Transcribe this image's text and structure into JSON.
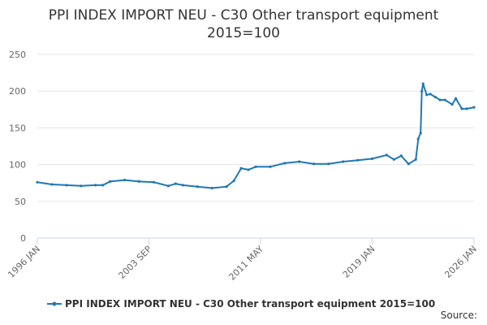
{
  "chart_data": {
    "type": "line",
    "title": "PPI INDEX IMPORT NEU - C30 Other transport equipment",
    "subtitle": "2015=100",
    "source": "Source:",
    "x": [
      "1996 JAN",
      "1997 JAN",
      "1998 JAN",
      "1999 JAN",
      "2000 JAN",
      "2000 JUL",
      "2001 JAN",
      "2002 JAN",
      "2003 JAN",
      "2004 JAN",
      "2005 JAN",
      "2005 JUL",
      "2006 JAN",
      "2007 JAN",
      "2008 JAN",
      "2009 JAN",
      "2009 JUL",
      "2010 JAN",
      "2010 JUL",
      "2011 JAN",
      "2012 JAN",
      "2013 JAN",
      "2014 JAN",
      "2015 JAN",
      "2016 JAN",
      "2017 JAN",
      "2018 JAN",
      "2019 JAN",
      "2020 JAN",
      "2020 JUL",
      "2021 JAN",
      "2021 JUL",
      "2022 JAN",
      "2022 MAR",
      "2022 MAY",
      "2022 JUN",
      "2022 JUL",
      "2022 OCT",
      "2023 JAN",
      "2023 MAY",
      "2023 SEP",
      "2024 JAN",
      "2024 JUL",
      "2024 OCT",
      "2025 MAR",
      "2025 JUL",
      "2026 JAN"
    ],
    "series": [
      {
        "name": "PPI INDEX IMPORT NEU - C30 Other transport equipment 2015=100",
        "color": "#1f78b4",
        "values": [
          76,
          73,
          72,
          71,
          72,
          72,
          77,
          79,
          77,
          76,
          71,
          74,
          72,
          70,
          68,
          70,
          78,
          95,
          93,
          97,
          97,
          102,
          104,
          101,
          101,
          104,
          106,
          108,
          113,
          107,
          112,
          101,
          107,
          135,
          143,
          200,
          210,
          195,
          196,
          192,
          188,
          188,
          182,
          190,
          176,
          176,
          178
        ]
      }
    ],
    "xlim": [
      "1996 JAN",
      "2026 JAN"
    ],
    "xticks": [
      "1996 JAN",
      "2003 SEP",
      "2011 MAY",
      "2019 JAN",
      "2026 JAN"
    ],
    "ylim": [
      0,
      250
    ],
    "yticks": [
      0,
      50,
      100,
      150,
      200,
      250
    ],
    "grid": true
  }
}
